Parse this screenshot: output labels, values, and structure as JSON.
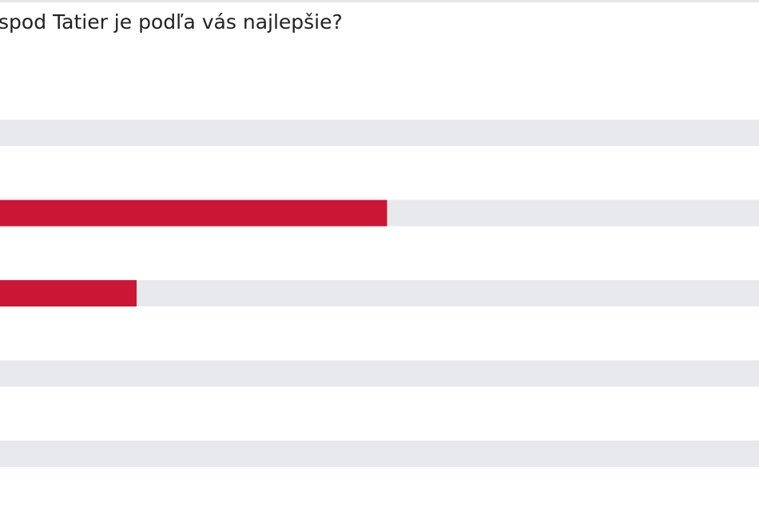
{
  "chart_data": {
    "type": "hbar",
    "title": "spod Tatier je podľa vás najlepšie?",
    "categories": [
      null,
      null,
      null,
      null,
      null
    ],
    "values": [
      0,
      51,
      18,
      0,
      0
    ],
    "color": "#cc1636",
    "track_color": "#e8e9ec",
    "xlim": [
      0,
      100
    ]
  }
}
